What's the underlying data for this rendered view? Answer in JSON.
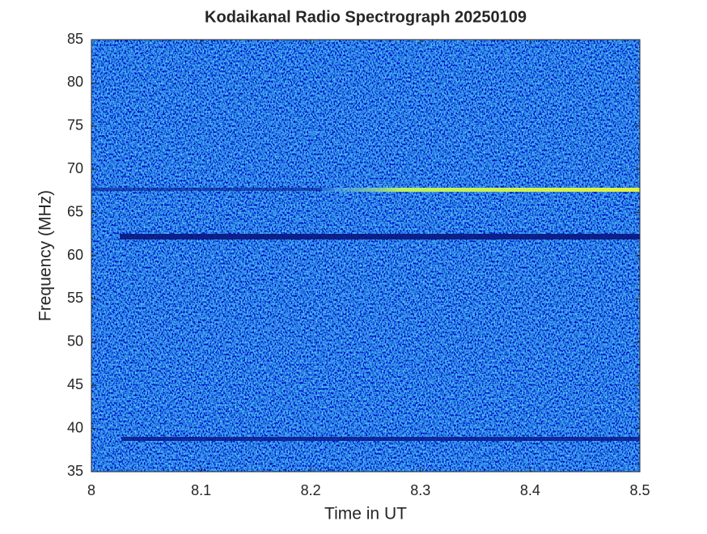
{
  "chart_data": {
    "type": "spectrogram",
    "title": "Kodaikanal Radio Spectrograph  20250109",
    "xlabel": "Time in UT",
    "ylabel": "Frequency (MHz)",
    "xlim": [
      8,
      8.5
    ],
    "ylim": [
      35,
      85
    ],
    "xticks": [
      8,
      8.1,
      8.2,
      8.3,
      8.4,
      8.5
    ],
    "yticks": [
      35,
      40,
      45,
      50,
      55,
      60,
      65,
      70,
      75,
      80,
      85
    ]
  }
}
